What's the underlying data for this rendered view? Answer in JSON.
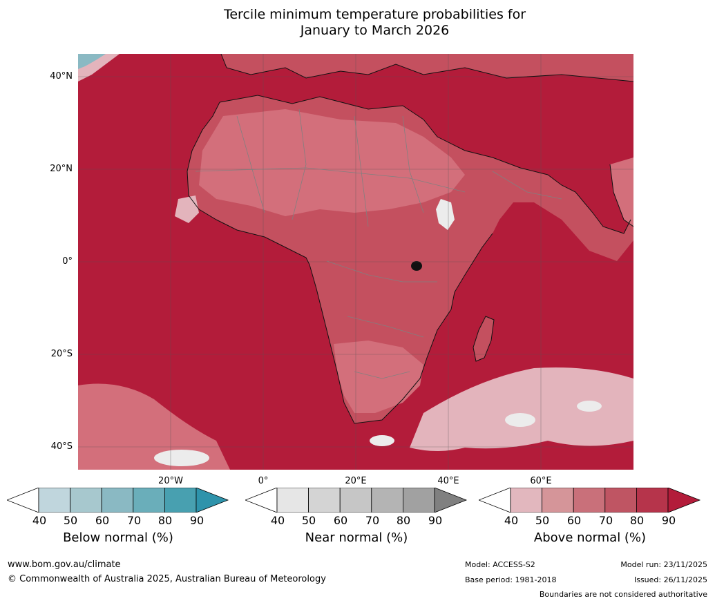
{
  "title_line1": "Tercile minimum temperature probabilities for",
  "title_line2": "January to March 2026",
  "map": {
    "lat_labels": [
      "40°N",
      "20°N",
      "0°",
      "20°S",
      "40°S"
    ],
    "lon_labels": [
      "20°W",
      "0°",
      "20°E",
      "40°E",
      "60°E"
    ],
    "colors": {
      "ocean_above": "#b31c3a",
      "mid_above": "#c4505f",
      "light_above": "#d36f7b",
      "pale_above": "#e3b4bc",
      "near_white": "#ececec",
      "coast": "#111111",
      "border": "#808080",
      "grid": "#555555"
    }
  },
  "colorbars": [
    {
      "title": "Below normal (%)",
      "ticks": [
        "40",
        "50",
        "60",
        "70",
        "80",
        "90"
      ],
      "colors": [
        "#ffffff",
        "#c0d6dd",
        "#a7c8ce",
        "#8ab9c3",
        "#6aaeba",
        "#48a0b0",
        "#2e93ab"
      ]
    },
    {
      "title": "Near normal (%)",
      "ticks": [
        "40",
        "50",
        "60",
        "70",
        "80",
        "90"
      ],
      "colors": [
        "#ffffff",
        "#e6e6e6",
        "#d4d4d4",
        "#c6c6c6",
        "#b4b4b4",
        "#a1a1a1",
        "#808080"
      ]
    },
    {
      "title": "Above normal (%)",
      "ticks": [
        "40",
        "50",
        "60",
        "70",
        "80",
        "90"
      ],
      "colors": [
        "#ffffff",
        "#e2b7be",
        "#d59599",
        "#c9707a",
        "#bf5563",
        "#b6344b",
        "#b31c3a"
      ]
    }
  ],
  "footer": {
    "website": "www.bom.gov.au/climate",
    "copyright": "© Commonwealth of Australia 2025, Australian Bureau of Meteorology",
    "model": "Model: ACCESS-S2",
    "base_period": "Base period: 1981-2018",
    "model_run": "Model run: 23/11/2025",
    "issued": "Issued: 26/11/2025",
    "boundaries": "Boundaries are not considered authoritative"
  }
}
